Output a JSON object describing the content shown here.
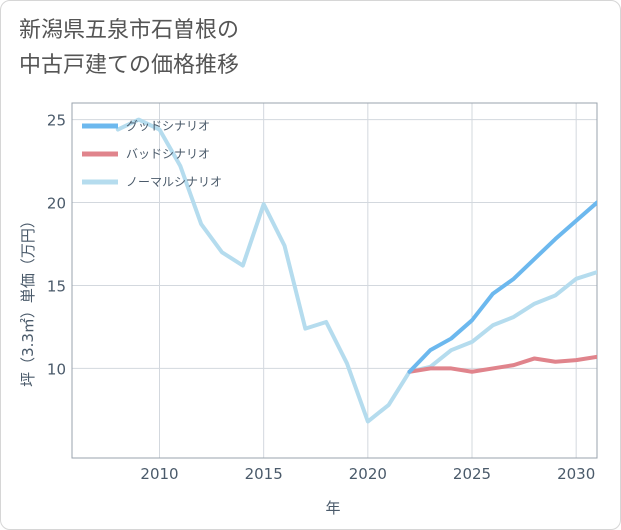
{
  "title_line1": "新潟県五泉市石曽根の",
  "title_line2": "中古戸建ての価格推移",
  "chart_data": {
    "type": "line",
    "xlabel": "年",
    "ylabel": "坪（3.3㎡）単価（万円）",
    "xlim": [
      2005.8,
      2031
    ],
    "ylim": [
      4.6,
      26
    ],
    "x_ticks": [
      2010,
      2015,
      2020,
      2025,
      2030
    ],
    "y_ticks": [
      10,
      15,
      20,
      25
    ],
    "grid": true,
    "legend_position": "top-left",
    "series": [
      {
        "name": "グッドシナリオ",
        "color": "#6cb8ee",
        "x": [
          2022,
          2023,
          2024,
          2025,
          2026,
          2027,
          2028,
          2029,
          2030,
          2031
        ],
        "values": [
          9.8,
          11.1,
          11.8,
          12.9,
          14.5,
          15.4,
          16.6,
          17.8,
          18.9,
          20.0
        ]
      },
      {
        "name": "バッドシナリオ",
        "color": "#e0848c",
        "x": [
          2022,
          2023,
          2024,
          2025,
          2026,
          2027,
          2028,
          2029,
          2030,
          2031
        ],
        "values": [
          9.8,
          10.0,
          10.0,
          9.8,
          10.0,
          10.2,
          10.6,
          10.4,
          10.5,
          10.7
        ]
      },
      {
        "name": "ノーマルシナリオ",
        "color": "#b5dcee",
        "x": [
          2008,
          2009,
          2010,
          2011,
          2012,
          2013,
          2014,
          2015,
          2016,
          2017,
          2018,
          2019,
          2020,
          2021,
          2022,
          2023,
          2024,
          2025,
          2026,
          2027,
          2028,
          2029,
          2030,
          2031
        ],
        "values": [
          24.4,
          25.0,
          24.4,
          22.2,
          18.7,
          17.0,
          16.2,
          19.9,
          17.4,
          12.4,
          12.8,
          10.3,
          6.8,
          7.8,
          9.8,
          10.1,
          11.1,
          11.6,
          12.6,
          13.1,
          13.9,
          14.4,
          15.4,
          15.8
        ]
      }
    ]
  }
}
